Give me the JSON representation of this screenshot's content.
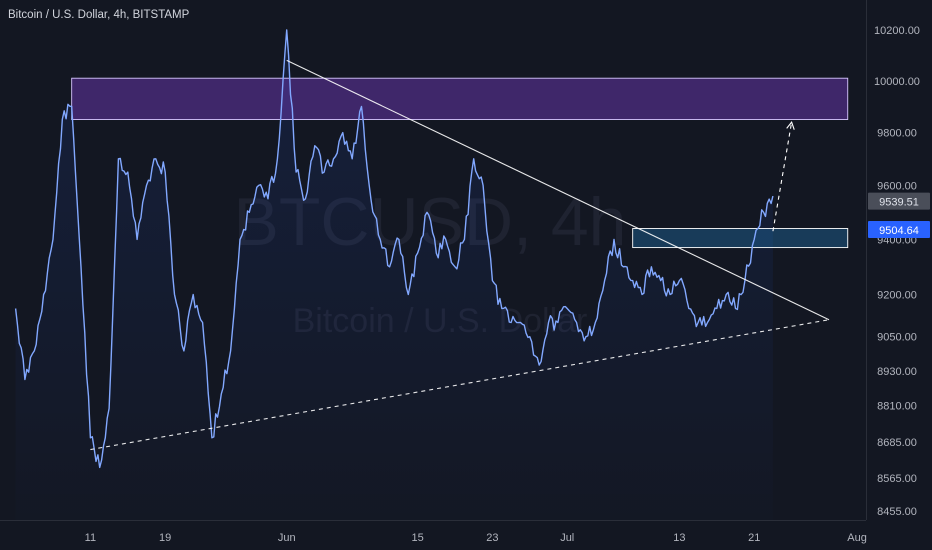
{
  "header": {
    "title": "Bitcoin / U.S. Dollar, 4h, BITSTAMP"
  },
  "watermark": {
    "line1": "BTCUSD, 4h",
    "line2": "Bitcoin / U.S. Dollar"
  },
  "colors": {
    "background": "#131722",
    "price_line": "#82a8ff",
    "purple_zone": "#7b3fd0",
    "blue_zone": "#1f6ea8",
    "trendline": "#ffffff",
    "axis_text": "#b2b5be"
  },
  "chart_data": {
    "type": "line",
    "title": "Bitcoin / U.S. Dollar, 4h, BITSTAMP",
    "xlabel": "",
    "ylabel": "",
    "x_ticks": [
      "11",
      "19",
      "Jun",
      "15",
      "23",
      "Jul",
      "13",
      "21",
      "Aug"
    ],
    "y_ticks": [
      "10200.00",
      "10000.00",
      "9800.00",
      "9600.00",
      "9400.00",
      "9200.00",
      "9050.00",
      "8930.00",
      "8810.00",
      "8685.00",
      "8565.00",
      "8455.00"
    ],
    "ylim": [
      8440,
      10250
    ],
    "y_scale": "log",
    "grid": false,
    "price_labels": [
      {
        "text": "9539.51",
        "value": 9539.51,
        "style": "gray"
      },
      {
        "text": "9504.64",
        "value": 9504.64,
        "style": "blue"
      }
    ],
    "series": [
      {
        "name": "",
        "x": [
          "2020-05-03",
          "2020-05-04",
          "2020-05-05",
          "2020-05-06",
          "2020-05-07",
          "2020-05-08",
          "2020-05-09",
          "2020-05-10",
          "2020-05-11",
          "2020-05-12",
          "2020-05-13",
          "2020-05-14",
          "2020-05-15",
          "2020-05-16",
          "2020-05-17",
          "2020-05-18",
          "2020-05-19",
          "2020-05-20",
          "2020-05-21",
          "2020-05-22",
          "2020-05-23",
          "2020-05-24",
          "2020-05-25",
          "2020-05-26",
          "2020-05-27",
          "2020-05-28",
          "2020-05-29",
          "2020-05-30",
          "2020-05-31",
          "2020-06-01",
          "2020-06-02",
          "2020-06-03",
          "2020-06-04",
          "2020-06-05",
          "2020-06-06",
          "2020-06-07",
          "2020-06-08",
          "2020-06-09",
          "2020-06-10",
          "2020-06-11",
          "2020-06-12",
          "2020-06-13",
          "2020-06-14",
          "2020-06-15",
          "2020-06-16",
          "2020-06-17",
          "2020-06-18",
          "2020-06-19",
          "2020-06-20",
          "2020-06-21",
          "2020-06-22",
          "2020-06-23",
          "2020-06-24",
          "2020-06-25",
          "2020-06-26",
          "2020-06-27",
          "2020-06-28",
          "2020-06-29",
          "2020-06-30",
          "2020-07-01",
          "2020-07-02",
          "2020-07-03",
          "2020-07-04",
          "2020-07-05",
          "2020-07-06",
          "2020-07-07",
          "2020-07-08",
          "2020-07-09",
          "2020-07-10",
          "2020-07-11",
          "2020-07-12",
          "2020-07-13",
          "2020-07-14",
          "2020-07-15",
          "2020-07-16",
          "2020-07-17",
          "2020-07-18",
          "2020-07-19",
          "2020-07-20",
          "2020-07-21",
          "2020-07-22",
          "2020-07-23"
        ],
        "y": [
          9150,
          8900,
          9000,
          9200,
          9400,
          9850,
          9900,
          9300,
          8700,
          8600,
          8800,
          9700,
          9650,
          9400,
          9600,
          9700,
          9650,
          9200,
          9000,
          9200,
          9100,
          8700,
          8850,
          9000,
          9400,
          9500,
          9600,
          9550,
          9700,
          10200,
          9650,
          9550,
          9750,
          9650,
          9700,
          9800,
          9700,
          9900,
          9550,
          9400,
          9300,
          9400,
          9200,
          9350,
          9500,
          9350,
          9400,
          9300,
          9400,
          9700,
          9600,
          9250,
          9150,
          9100,
          9100,
          9050,
          8950,
          9100,
          9100,
          9150,
          9100,
          9050,
          9100,
          9250,
          9400,
          9300,
          9250,
          9200,
          9300,
          9250,
          9200,
          9250,
          9150,
          9100,
          9100,
          9150,
          9200,
          9150,
          9250,
          9400,
          9500,
          9560
        ]
      }
    ],
    "annotations": [
      {
        "type": "zone",
        "name": "resistance-zone",
        "x_from": "2020-05-09",
        "x_to": "2020-07-31",
        "y_from": 9850,
        "y_to": 10010,
        "color": "#7b3fd0"
      },
      {
        "type": "zone",
        "name": "breakout-zone",
        "x_from": "2020-07-08",
        "x_to": "2020-07-31",
        "y_from": 9370,
        "y_to": 9440,
        "color": "#1f6ea8"
      },
      {
        "type": "line",
        "name": "descending-trendline",
        "from": [
          "2020-06-01",
          10080
        ],
        "to": [
          "2020-07-29",
          9110
        ],
        "style": "solid"
      },
      {
        "type": "line",
        "name": "ascending-trendline",
        "from": [
          "2020-05-11",
          8660
        ],
        "to": [
          "2020-07-29",
          9110
        ],
        "style": "dashed"
      },
      {
        "type": "arrow",
        "name": "projection-arrow",
        "from": [
          "2020-07-23",
          9430
        ],
        "to": [
          "2020-07-25",
          9840
        ],
        "style": "dashed"
      }
    ]
  }
}
